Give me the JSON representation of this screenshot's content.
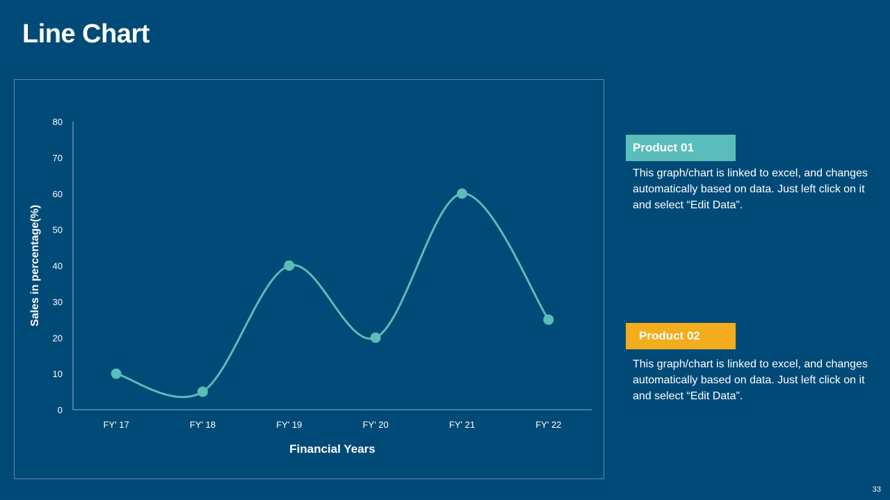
{
  "slide": {
    "title": "Line Chart",
    "page_number": "33"
  },
  "legend": [
    {
      "label": "Product  01",
      "color": "#5bbdb9",
      "description": "This graph/chart is linked to excel, and changes automatically based on data. Just left click on it and select “Edit Data”."
    },
    {
      "label": "Product   02",
      "color": "#f3ac1c",
      "description": "This graph/chart is linked to excel, and changes automatically based on data. Just left click on it and select “Edit Data”."
    }
  ],
  "chart_data": {
    "type": "line",
    "smooth": true,
    "title": "",
    "xlabel": "Financial  Years",
    "ylabel": "Sales in percentage(%)",
    "categories": [
      "FY' 17",
      "FY' 18",
      "FY' 19",
      "FY' 20",
      "FY' 21",
      "FY' 22"
    ],
    "series": [
      {
        "values": [
          10,
          5,
          40,
          20,
          60,
          25
        ],
        "color": "#5bbdb9"
      }
    ],
    "ylim": [
      0,
      80
    ],
    "yticks": [
      0,
      10,
      20,
      30,
      40,
      50,
      60,
      70,
      80
    ],
    "grid": false
  }
}
